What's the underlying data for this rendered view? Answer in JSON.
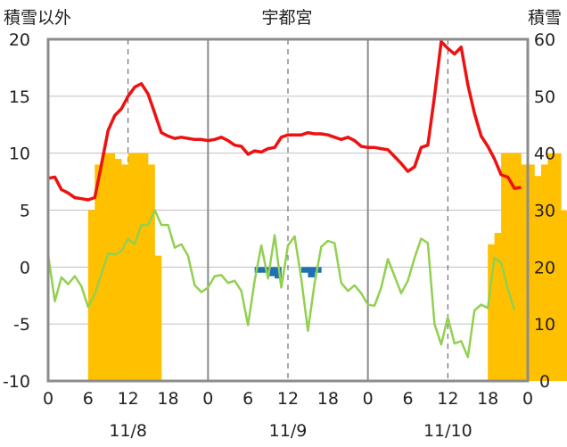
{
  "chart_data": {
    "type": "combo",
    "title": "宇都宮",
    "left_axis_label": "積雪以外",
    "right_axis_label": "積雪",
    "left_ylim": [
      -10,
      20
    ],
    "left_ticks": [
      20,
      15,
      10,
      5,
      0,
      -5,
      -10
    ],
    "right_ylim": [
      0,
      60
    ],
    "right_ticks": [
      60,
      50,
      40,
      30,
      20,
      10,
      0
    ],
    "x_tick_labels": [
      "0",
      "6",
      "12",
      "18",
      "0",
      "6",
      "12",
      "18",
      "0",
      "6",
      "12",
      "18",
      "0"
    ],
    "day_labels": [
      "11/8",
      "11/9",
      "11/10"
    ],
    "grid": true,
    "series_colors": {
      "red_line": "#ee1111",
      "green_line": "#92d050",
      "orange_bars": "#ffc000",
      "blue_bars": "#1f6fb5"
    },
    "red_line": [
      7.8,
      7.9,
      6.8,
      6.5,
      6.1,
      6.0,
      5.9,
      6.1,
      9.0,
      12.0,
      13.3,
      13.9,
      15.0,
      15.8,
      16.1,
      15.2,
      13.5,
      11.8,
      11.5,
      11.3,
      11.4,
      11.3,
      11.2,
      11.2,
      11.1,
      11.2,
      11.4,
      11.1,
      10.7,
      10.6,
      9.9,
      10.2,
      10.1,
      10.4,
      10.5,
      11.4,
      11.6,
      11.6,
      11.6,
      11.8,
      11.7,
      11.7,
      11.6,
      11.4,
      11.2,
      11.4,
      11.1,
      10.6,
      10.5,
      10.5,
      10.4,
      10.3,
      9.7,
      9.1,
      8.4,
      8.8,
      10.5,
      10.7,
      15.0,
      19.8,
      19.2,
      18.7,
      19.3,
      16.0,
      13.5,
      11.5,
      10.6,
      9.5,
      8.1,
      7.9,
      6.9,
      7.0
    ],
    "green_line": [
      1.1,
      -3.0,
      -0.9,
      -1.5,
      -0.8,
      -1.7,
      -3.5,
      -2.4,
      -0.6,
      1.2,
      1.1,
      1.4,
      2.5,
      2.0,
      3.7,
      3.7,
      5.0,
      3.7,
      3.7,
      1.7,
      2.0,
      1.0,
      -1.6,
      -2.2,
      -1.8,
      -0.8,
      -0.7,
      -1.4,
      -1.2,
      -2.1,
      -5.1,
      -1.2,
      1.9,
      -1.0,
      2.8,
      -1.8,
      1.9,
      2.7,
      -1.0,
      -5.6,
      -1.4,
      1.8,
      2.3,
      2.1,
      -1.4,
      -2.1,
      -1.6,
      -2.3,
      -3.3,
      -3.4,
      -1.8,
      0.7,
      -0.8,
      -2.3,
      -1.2,
      0.8,
      2.5,
      2.1,
      -5.0,
      -6.8,
      -4.4,
      -6.7,
      -6.5,
      -7.9,
      -3.8,
      -3.3,
      -3.6,
      0.8,
      0.4,
      -1.9,
      -3.8
    ],
    "orange_bars": [
      {
        "hour": 6,
        "value": 30
      },
      {
        "hour": 7,
        "value": 38
      },
      {
        "hour": 8,
        "value": 40
      },
      {
        "hour": 9,
        "value": 40
      },
      {
        "hour": 10,
        "value": 39
      },
      {
        "hour": 11,
        "value": 38
      },
      {
        "hour": 12,
        "value": 40
      },
      {
        "hour": 13,
        "value": 40
      },
      {
        "hour": 14,
        "value": 40
      },
      {
        "hour": 15,
        "value": 38
      },
      {
        "hour": 16,
        "value": 22
      },
      {
        "hour": 66,
        "value": 24
      },
      {
        "hour": 67,
        "value": 26
      },
      {
        "hour": 68,
        "value": 40
      },
      {
        "hour": 69,
        "value": 40
      },
      {
        "hour": 70,
        "value": 40
      },
      {
        "hour": 71,
        "value": 38
      },
      {
        "hour": 72,
        "value": 38
      },
      {
        "hour": 73,
        "value": 36
      },
      {
        "hour": 74,
        "value": 38
      },
      {
        "hour": 75,
        "value": 40
      },
      {
        "hour": 76,
        "value": 40
      },
      {
        "hour": 77,
        "value": 30
      }
    ],
    "blue_bars": [
      {
        "hour": 31,
        "value": -0.5
      },
      {
        "hour": 32,
        "value": -0.5
      },
      {
        "hour": 33,
        "value": -0.8
      },
      {
        "hour": 34,
        "value": -1.0
      },
      {
        "hour": 38,
        "value": -0.5
      },
      {
        "hour": 39,
        "value": -0.9
      },
      {
        "hour": 40,
        "value": -0.5
      }
    ]
  }
}
